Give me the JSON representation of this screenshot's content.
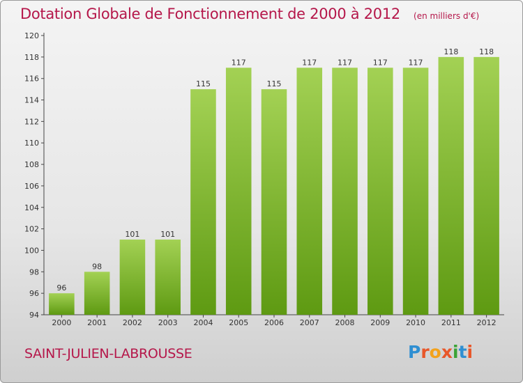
{
  "title": "Dotation Globale de Fonctionnement de 2000 à 2012",
  "subtitle": "(en milliers d'€)",
  "commune": "SAINT-JULIEN-LABROUSSE",
  "logo": {
    "letters": [
      "P",
      "r",
      "o",
      "x",
      "i",
      "t",
      "i"
    ],
    "colors": [
      "#2f8fd2",
      "#e8572a",
      "#f3a21b",
      "#e8572a",
      "#3aa336",
      "#2f8fd2",
      "#e8572a"
    ]
  },
  "colors": {
    "bar_light": "#a3d154",
    "bar_dark": "#5e9a12",
    "title": "#b5174a"
  },
  "chart_data": {
    "type": "bar",
    "title": "Dotation Globale de Fonctionnement de 2000 à 2012",
    "subtitle": "(en milliers d'€)",
    "categories": [
      "2000",
      "2001",
      "2002",
      "2003",
      "2004",
      "2005",
      "2006",
      "2007",
      "2008",
      "2009",
      "2010",
      "2011",
      "2012"
    ],
    "values": [
      96,
      98,
      101,
      101,
      115,
      117,
      115,
      117,
      117,
      117,
      117,
      118,
      118
    ],
    "ylim": [
      94,
      120
    ],
    "yticks": [
      94,
      96,
      98,
      100,
      102,
      104,
      106,
      108,
      110,
      112,
      114,
      116,
      118,
      120
    ],
    "grid": false,
    "data_labels": true
  }
}
